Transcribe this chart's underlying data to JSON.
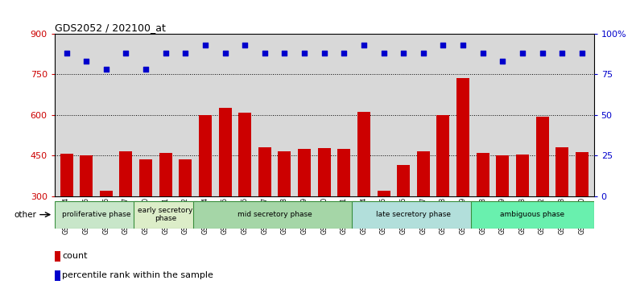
{
  "title": "GDS2052 / 202100_at",
  "samples": [
    "GSM109814",
    "GSM109815",
    "GSM109816",
    "GSM109817",
    "GSM109820",
    "GSM109821",
    "GSM109822",
    "GSM109824",
    "GSM109825",
    "GSM109826",
    "GSM109827",
    "GSM109828",
    "GSM109829",
    "GSM109830",
    "GSM109831",
    "GSM109834",
    "GSM109835",
    "GSM109836",
    "GSM109837",
    "GSM109838",
    "GSM109839",
    "GSM109818",
    "GSM109819",
    "GSM109823",
    "GSM109832",
    "GSM109833",
    "GSM109840"
  ],
  "counts": [
    458,
    450,
    320,
    465,
    435,
    460,
    435,
    600,
    625,
    608,
    480,
    465,
    475,
    477,
    475,
    610,
    320,
    415,
    465,
    600,
    735,
    460,
    450,
    453,
    592,
    480,
    462
  ],
  "percentiles": [
    88,
    83,
    78,
    88,
    78,
    88,
    88,
    93,
    88,
    93,
    88,
    88,
    88,
    88,
    88,
    93,
    88,
    88,
    88,
    93,
    93,
    88,
    83,
    88,
    88,
    88,
    88
  ],
  "phases": [
    {
      "label": "proliferative phase",
      "start": 0,
      "end": 4,
      "color": "#c8e6c9"
    },
    {
      "label": "early secretory\nphase",
      "start": 4,
      "end": 7,
      "color": "#dcedc8"
    },
    {
      "label": "mid secretory phase",
      "start": 7,
      "end": 15,
      "color": "#a5d6a7"
    },
    {
      "label": "late secretory phase",
      "start": 15,
      "end": 21,
      "color": "#b2dfdb"
    },
    {
      "label": "ambiguous phase",
      "start": 21,
      "end": 27,
      "color": "#69f0ae"
    }
  ],
  "bar_color": "#cc0000",
  "dot_color": "#0000cc",
  "ylim_left": [
    300,
    900
  ],
  "ylim_right": [
    0,
    100
  ],
  "yticks_left": [
    300,
    450,
    600,
    750,
    900
  ],
  "yticks_right": [
    0,
    25,
    50,
    75,
    100
  ],
  "background_color": "#d8d8d8",
  "grid_color": "#000000"
}
